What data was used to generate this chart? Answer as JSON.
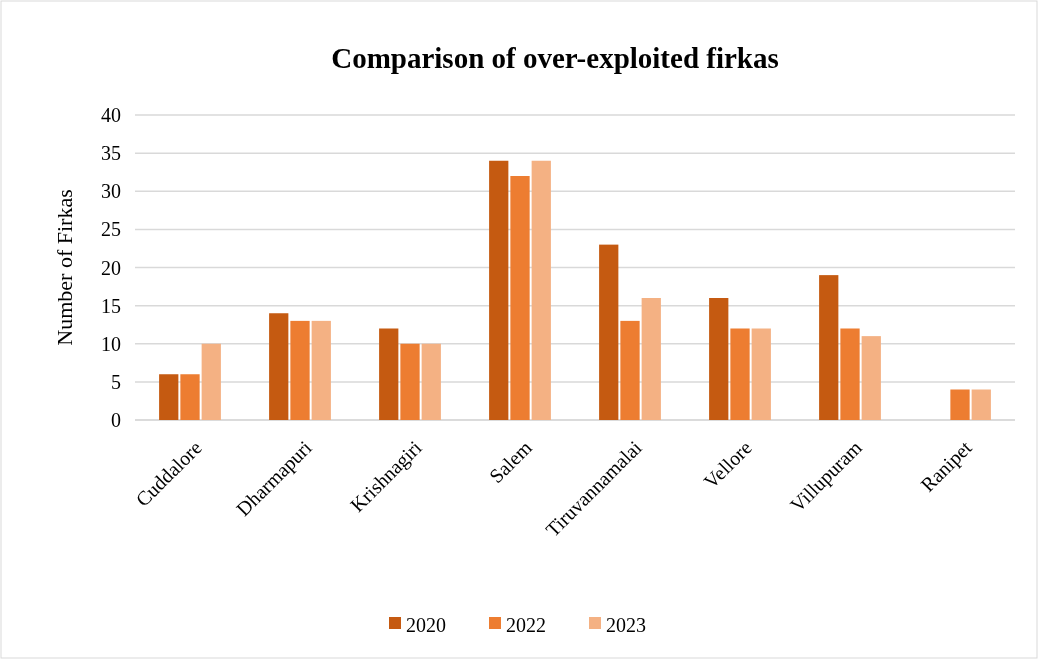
{
  "chart_data": {
    "type": "bar",
    "title": "Comparison of over-exploited firkas",
    "ylabel": "Number of Firkas",
    "categories": [
      "Cuddalore",
      "Dharmapuri",
      "Krishnagiri",
      "Salem",
      "Tiruvannamalai",
      "Vellore",
      "Villupuram",
      "Ranipet"
    ],
    "series": [
      {
        "name": "2020",
        "color": "#c55a11",
        "values": [
          6,
          14,
          12,
          34,
          23,
          16,
          19,
          null
        ]
      },
      {
        "name": "2022",
        "color": "#ed7d31",
        "values": [
          6,
          13,
          10,
          32,
          13,
          12,
          12,
          4
        ]
      },
      {
        "name": "2023",
        "color": "#f4b183",
        "values": [
          10,
          13,
          10,
          34,
          16,
          12,
          11,
          4
        ]
      }
    ],
    "ylim": [
      0,
      40
    ],
    "yticks": [
      0,
      5,
      10,
      15,
      20,
      25,
      30,
      35,
      40
    ],
    "grid": "y",
    "legend": "bottom"
  }
}
